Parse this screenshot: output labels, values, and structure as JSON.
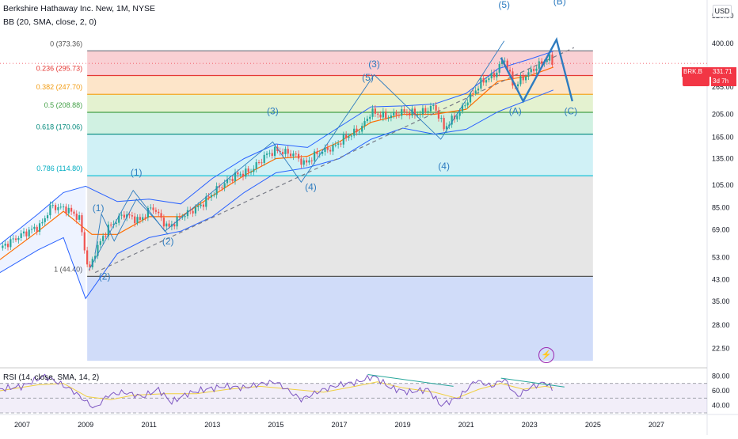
{
  "header": {
    "title": "Berkshire Hathaway Inc. New, 1M, NYSE",
    "indicator": "BB (20, SMA, close, 2, 0)"
  },
  "axis_currency": "USD",
  "price_tag": {
    "symbol": "BRK.B",
    "price": "331.71",
    "countdown": "3d 7h"
  },
  "rsi_label": "RSI (14, close, SMA, 14, 2)",
  "colors": {
    "candle_up": "#26a69a",
    "candle_down": "#ef5350",
    "bb_band": "#2962ff",
    "bb_basis": "#ff6d00",
    "wave_annotation": "#2e7cc0",
    "trendline_dashed": "#787b86",
    "rsi_line": "#7e57c2",
    "rsi_ma": "#f0d040",
    "price_tag": "#f23645"
  },
  "chart_data": {
    "type": "candlestick",
    "y_scale": "log",
    "ylim": [
      19,
      560
    ],
    "xlim_years": [
      2006.3,
      2028.6
    ],
    "price_ticks": [
      "520.00",
      "400.00",
      "331.71",
      "265.00",
      "205.00",
      "165.00",
      "135.00",
      "105.00",
      "85.00",
      "69.00",
      "53.00",
      "43.00",
      "35.00",
      "28.00",
      "22.50"
    ],
    "price_tick_values": [
      520,
      400,
      331.71,
      265,
      205,
      165,
      135,
      105,
      85,
      69,
      53,
      43,
      35,
      28,
      22.5
    ],
    "year_ticks": [
      "2007",
      "2009",
      "2011",
      "2013",
      "2015",
      "2017",
      "2019",
      "2021",
      "2023",
      "2025",
      "2027"
    ],
    "fibonacci": {
      "start_year": 2009.05,
      "end_year": 2025.0,
      "levels": [
        {
          "label": "0 (373.36)",
          "ratio": 0,
          "price": 373.36,
          "line_color": "#787b86",
          "fill": "#f8c8cc",
          "text_color": "#555555"
        },
        {
          "label": "0.236 (295.73)",
          "ratio": 0.236,
          "price": 295.73,
          "line_color": "#e53935",
          "fill": "#fde0c0",
          "text_color": "#e53935"
        },
        {
          "label": "0.382 (247.70)",
          "ratio": 0.382,
          "price": 247.7,
          "line_color": "#f5a623",
          "fill": "#dff0c8",
          "text_color": "#f29c13"
        },
        {
          "label": "0.5 (208.88)",
          "ratio": 0.5,
          "price": 208.88,
          "line_color": "#43a047",
          "fill": "#c8eedd",
          "text_color": "#43a047"
        },
        {
          "label": "0.618 (170.06)",
          "ratio": 0.618,
          "price": 170.06,
          "line_color": "#00897b",
          "fill": "#c8eef4",
          "text_color": "#00897b"
        },
        {
          "label": "0.786 (114.80)",
          "ratio": 0.786,
          "price": 114.8,
          "line_color": "#00bcd4",
          "fill": "#e2e2e2",
          "text_color": "#00acc1"
        },
        {
          "label": "1 (44.40)",
          "ratio": 1,
          "price": 44.4,
          "line_color": "#555555",
          "fill": "#c8d6f8",
          "text_color": "#555555"
        }
      ],
      "bottom_price": 20
    },
    "price_path": [
      [
        2006.3,
        58
      ],
      [
        2007.0,
        66
      ],
      [
        2007.6,
        72
      ],
      [
        2007.9,
        86
      ],
      [
        2008.4,
        84
      ],
      [
        2008.8,
        77
      ],
      [
        2009.1,
        46
      ],
      [
        2009.3,
        56
      ],
      [
        2009.7,
        70
      ],
      [
        2010.2,
        80
      ],
      [
        2010.7,
        75
      ],
      [
        2011.1,
        86
      ],
      [
        2011.6,
        70
      ],
      [
        2012.0,
        78
      ],
      [
        2012.6,
        86
      ],
      [
        2013.1,
        100
      ],
      [
        2013.7,
        115
      ],
      [
        2014.2,
        120
      ],
      [
        2014.7,
        140
      ],
      [
        2015.0,
        146
      ],
      [
        2015.6,
        140
      ],
      [
        2015.9,
        128
      ],
      [
        2016.3,
        142
      ],
      [
        2016.8,
        150
      ],
      [
        2017.2,
        165
      ],
      [
        2017.7,
        180
      ],
      [
        2018.0,
        210
      ],
      [
        2018.5,
        200
      ],
      [
        2019.0,
        210
      ],
      [
        2019.5,
        206
      ],
      [
        2020.0,
        222
      ],
      [
        2020.3,
        180
      ],
      [
        2020.8,
        210
      ],
      [
        2021.0,
        230
      ],
      [
        2021.5,
        280
      ],
      [
        2021.9,
        298
      ],
      [
        2022.2,
        350
      ],
      [
        2022.5,
        265
      ],
      [
        2022.8,
        290
      ],
      [
        2023.2,
        320
      ],
      [
        2023.6,
        350
      ],
      [
        2023.75,
        331.71
      ]
    ],
    "bollinger_basis": [
      [
        2006.3,
        52
      ],
      [
        2007.5,
        68
      ],
      [
        2008.3,
        82
      ],
      [
        2009.2,
        66
      ],
      [
        2010.0,
        66
      ],
      [
        2011.0,
        78
      ],
      [
        2012.0,
        78
      ],
      [
        2013.0,
        95
      ],
      [
        2014.0,
        115
      ],
      [
        2015.0,
        135
      ],
      [
        2016.0,
        138
      ],
      [
        2017.0,
        158
      ],
      [
        2018.0,
        190
      ],
      [
        2019.0,
        205
      ],
      [
        2020.0,
        205
      ],
      [
        2021.0,
        215
      ],
      [
        2022.0,
        280
      ],
      [
        2023.0,
        295
      ],
      [
        2023.75,
        320
      ]
    ],
    "bollinger_upper": [
      [
        2006.3,
        60
      ],
      [
        2007.5,
        80
      ],
      [
        2008.3,
        98
      ],
      [
        2009.0,
        104
      ],
      [
        2010.0,
        90
      ],
      [
        2011.0,
        92
      ],
      [
        2012.0,
        88
      ],
      [
        2013.0,
        112
      ],
      [
        2014.0,
        135
      ],
      [
        2015.0,
        155
      ],
      [
        2016.0,
        150
      ],
      [
        2017.0,
        182
      ],
      [
        2018.0,
        220
      ],
      [
        2019.0,
        222
      ],
      [
        2020.0,
        226
      ],
      [
        2021.0,
        250
      ],
      [
        2022.0,
        315
      ],
      [
        2023.0,
        345
      ],
      [
        2023.75,
        372
      ]
    ],
    "bollinger_lower": [
      [
        2006.3,
        46
      ],
      [
        2007.5,
        57
      ],
      [
        2008.3,
        64
      ],
      [
        2009.0,
        36
      ],
      [
        2010.0,
        55
      ],
      [
        2011.0,
        64
      ],
      [
        2012.0,
        68
      ],
      [
        2013.0,
        78
      ],
      [
        2014.0,
        98
      ],
      [
        2015.0,
        118
      ],
      [
        2016.0,
        124
      ],
      [
        2017.0,
        135
      ],
      [
        2018.0,
        162
      ],
      [
        2019.0,
        180
      ],
      [
        2020.0,
        170
      ],
      [
        2021.0,
        178
      ],
      [
        2022.0,
        210
      ],
      [
        2023.0,
        236
      ],
      [
        2023.75,
        258
      ]
    ],
    "bb_fill_range": [
      2006.3,
      2009.0
    ],
    "dashed_trendline": [
      [
        2009.3,
        46
      ],
      [
        2024.4,
        385
      ]
    ],
    "wave_labels": [
      {
        "text": "(1)",
        "year": 2009.4,
        "price": 82
      },
      {
        "text": "(2)",
        "year": 2009.6,
        "price": 43
      },
      {
        "text": "(1)",
        "year": 2010.6,
        "price": 115
      },
      {
        "text": "(2)",
        "year": 2011.6,
        "price": 60
      },
      {
        "text": "(3)",
        "year": 2014.9,
        "price": 205
      },
      {
        "text": "(4)",
        "year": 2016.1,
        "price": 100
      },
      {
        "text": "(5)",
        "year": 2017.9,
        "price": 282
      },
      {
        "text": "(3)",
        "year": 2018.1,
        "price": 320
      },
      {
        "text": "(4)",
        "year": 2020.3,
        "price": 122
      },
      {
        "text": "(5)",
        "year": 2022.2,
        "price": 560
      },
      {
        "text": "(B)",
        "year": 2023.95,
        "price": 580
      },
      {
        "text": "(A)",
        "year": 2022.55,
        "price": 205
      },
      {
        "text": "(C)",
        "year": 2024.3,
        "price": 205
      }
    ],
    "wave_lines": [
      [
        [
          2009.1,
          47
        ],
        [
          2010.5,
          100
        ],
        [
          2011.5,
          68
        ],
        [
          2014.9,
          158
        ],
        [
          2015.8,
          108
        ],
        [
          2018.1,
          298
        ],
        [
          2020.2,
          162
        ],
        [
          2022.2,
          410
        ]
      ],
      [
        [
          2009.3,
          55
        ],
        [
          2009.5,
          80
        ],
        [
          2009.9,
          62
        ],
        [
          2010.6,
          92
        ],
        [
          2011.2,
          76
        ],
        [
          2011.6,
          66
        ]
      ]
    ],
    "abc_lines": [
      [
        [
          2022.1,
          350
        ],
        [
          2022.8,
          232
        ],
        [
          2023.85,
          415
        ],
        [
          2024.35,
          232
        ]
      ]
    ],
    "rsi": {
      "ylim": [
        30,
        90
      ],
      "ticks": [
        "80.00",
        "60.00",
        "40.00"
      ],
      "tick_values": [
        80,
        60,
        40
      ],
      "bands": [
        70,
        50,
        30
      ],
      "line": [
        [
          2006.3,
          62
        ],
        [
          2007.0,
          66
        ],
        [
          2007.7,
          80
        ],
        [
          2008.0,
          74
        ],
        [
          2008.6,
          60
        ],
        [
          2009.05,
          44
        ],
        [
          2009.3,
          36
        ],
        [
          2009.7,
          54
        ],
        [
          2010.2,
          58
        ],
        [
          2010.8,
          52
        ],
        [
          2011.3,
          62
        ],
        [
          2011.7,
          44
        ],
        [
          2012.2,
          56
        ],
        [
          2012.8,
          62
        ],
        [
          2013.4,
          66
        ],
        [
          2014.0,
          64
        ],
        [
          2014.6,
          70
        ],
        [
          2015.0,
          72
        ],
        [
          2015.8,
          48
        ],
        [
          2016.4,
          60
        ],
        [
          2017.0,
          68
        ],
        [
          2017.6,
          72
        ],
        [
          2018.1,
          80
        ],
        [
          2018.6,
          64
        ],
        [
          2019.2,
          58
        ],
        [
          2019.8,
          62
        ],
        [
          2020.2,
          40
        ],
        [
          2020.8,
          52
        ],
        [
          2021.3,
          74
        ],
        [
          2021.8,
          66
        ],
        [
          2022.2,
          76
        ],
        [
          2022.6,
          52
        ],
        [
          2023.0,
          64
        ],
        [
          2023.5,
          72
        ],
        [
          2023.75,
          60
        ]
      ],
      "ma": [
        [
          2006.3,
          60
        ],
        [
          2007.5,
          68
        ],
        [
          2008.3,
          70
        ],
        [
          2009.05,
          52
        ],
        [
          2009.8,
          48
        ],
        [
          2010.5,
          54
        ],
        [
          2011.5,
          56
        ],
        [
          2012.5,
          56
        ],
        [
          2013.5,
          62
        ],
        [
          2014.5,
          66
        ],
        [
          2015.5,
          62
        ],
        [
          2016.5,
          58
        ],
        [
          2017.5,
          66
        ],
        [
          2018.2,
          72
        ],
        [
          2019.0,
          64
        ],
        [
          2020.0,
          58
        ],
        [
          2020.7,
          50
        ],
        [
          2021.4,
          62
        ],
        [
          2022.1,
          70
        ],
        [
          2022.8,
          62
        ],
        [
          2023.5,
          66
        ],
        [
          2023.75,
          64
        ]
      ],
      "divergence_lines": [
        [
          [
            2017.9,
            82
          ],
          [
            2020.6,
            66
          ]
        ],
        [
          [
            2022.1,
            77
          ],
          [
            2024.1,
            65
          ]
        ]
      ]
    }
  }
}
